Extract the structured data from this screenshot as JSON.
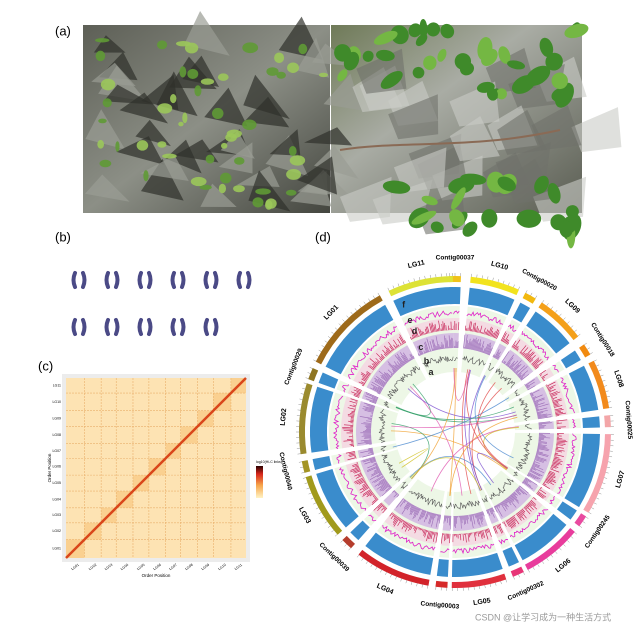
{
  "panels": {
    "a": "(a)",
    "b": "(b)",
    "c": "(c)",
    "d": "(d)"
  },
  "hic": {
    "x_label": "Order Position",
    "y_label": "Order Position",
    "legend_title": "log10(Hi-C links)",
    "chromosomes": [
      "LG01",
      "LG02",
      "LG03",
      "LG04",
      "LG05",
      "LG06",
      "LG07",
      "LG08",
      "LG09",
      "LG10",
      "LG11"
    ]
  },
  "circos": {
    "segments": [
      "Contig00037",
      "LG10",
      "Contig00020",
      "LG09",
      "Contig00018",
      "LG08",
      "Contig00025",
      "LG07",
      "Contig00245",
      "LG06",
      "Contig00302",
      "LG05",
      "Contig00003",
      "LG04",
      "Contig00039",
      "LG03",
      "Contig00040",
      "LG02",
      "Contig00029",
      "LG01",
      "LG11"
    ],
    "tracks": [
      "a",
      "b",
      "c",
      "d",
      "e",
      "f"
    ]
  },
  "watermark": "CSDN @让学习成为一种生活方式"
}
